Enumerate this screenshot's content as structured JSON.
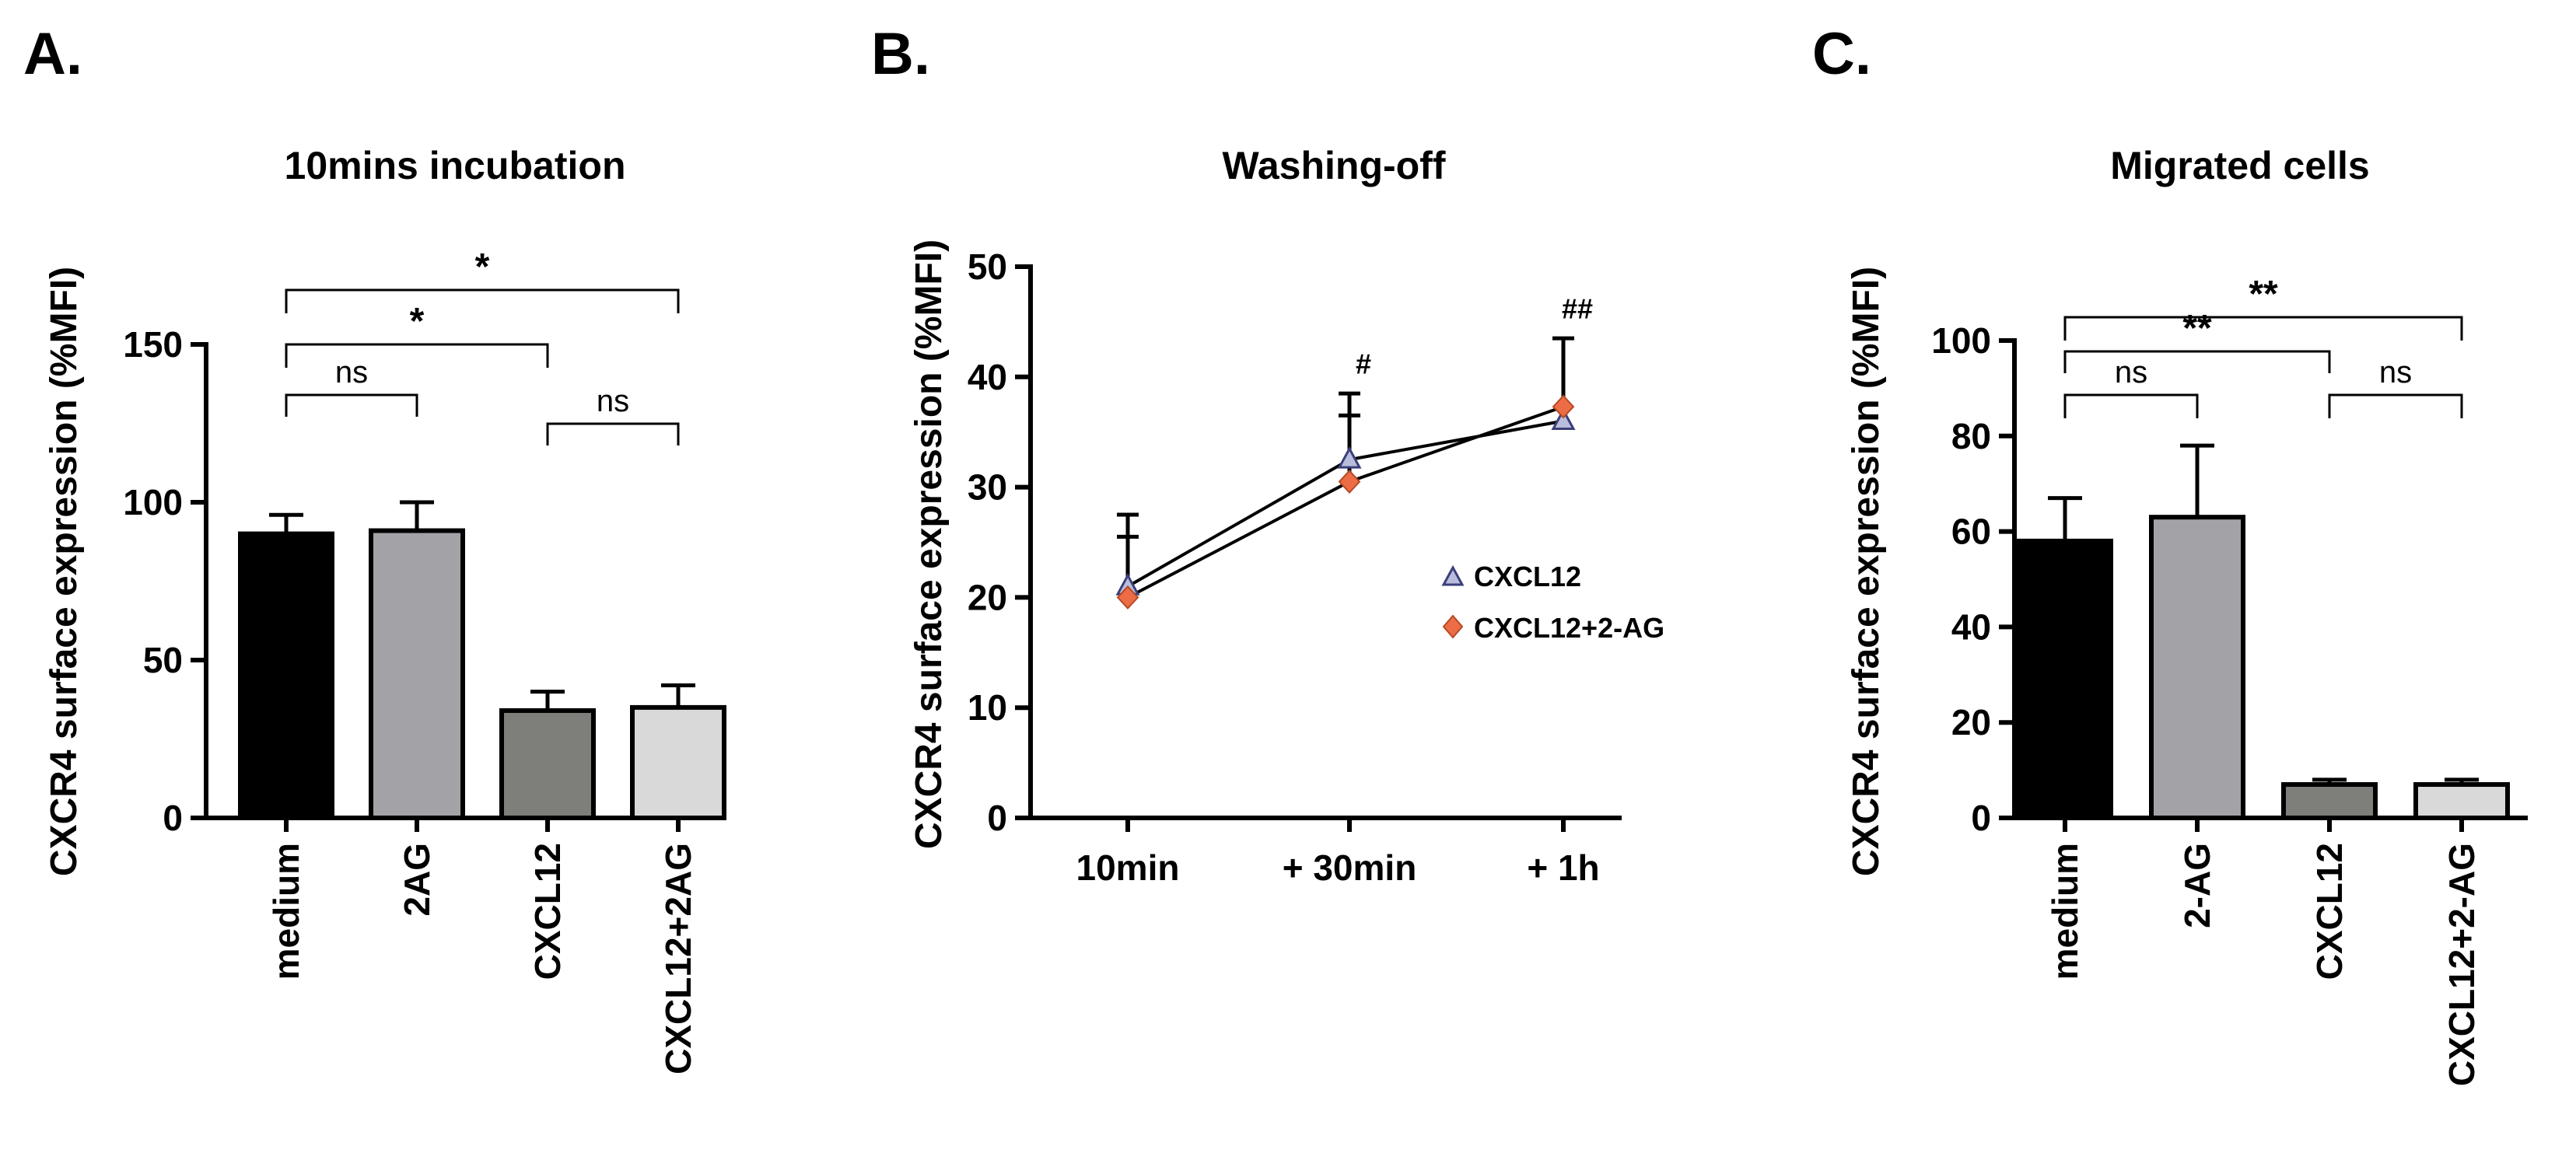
{
  "panels": {
    "A": {
      "letter": "A.",
      "chart_data": {
        "type": "bar",
        "title": "10mins incubation",
        "ylabel": "CXCR4 surface expression (%MFI)",
        "xlabel": "",
        "ylim": [
          0,
          150
        ],
        "yticks": [
          0,
          50,
          100,
          150
        ],
        "categories": [
          "medium",
          "2AG",
          "CXCL12",
          "CXCL12+2AG"
        ],
        "values": [
          90,
          91,
          34,
          35
        ],
        "errors": [
          6,
          9,
          6,
          7
        ],
        "colors": [
          "#000000",
          "#a3a3a7",
          "#7e7e7a",
          "#d9d9d9"
        ],
        "comparisons": [
          {
            "from": 0,
            "to": 1,
            "label": "ns"
          },
          {
            "from": 2,
            "to": 3,
            "label": "ns"
          },
          {
            "from": 0,
            "to": 2,
            "label": "*"
          },
          {
            "from": 0,
            "to": 3,
            "label": "*"
          }
        ]
      }
    },
    "B": {
      "letter": "B.",
      "chart_data": {
        "type": "line",
        "title": "Washing-off",
        "ylabel": "CXCR4 surface expression (%MFI)",
        "xlabel": "",
        "ylim": [
          0,
          50
        ],
        "yticks": [
          0,
          10,
          20,
          30,
          40,
          50
        ],
        "categories": [
          "10min",
          "+ 30min",
          "+ 1h"
        ],
        "series": [
          {
            "name": "CXCL12",
            "values": [
              21,
              32.5,
              36
            ],
            "errors": [
              6.5,
              6,
              0
            ],
            "marker": "triangle",
            "color": "#b9bddb"
          },
          {
            "name": "CXCL12+2-AG",
            "values": [
              20,
              30.5,
              37.3
            ],
            "errors": [
              5.5,
              6,
              6.2
            ],
            "marker": "diamond",
            "color": "#ec6d45"
          }
        ],
        "annotations": [
          {
            "category": 1,
            "label": "#",
            "y": 40.3
          },
          {
            "category": 2,
            "label": "##",
            "y": 45.3
          }
        ],
        "legend_position": "right"
      }
    },
    "C": {
      "letter": "C.",
      "chart_data": {
        "type": "bar",
        "title": "Migrated cells",
        "ylabel": "CXCR4 surface expression (%MFI)",
        "xlabel": "",
        "ylim": [
          0,
          100
        ],
        "yticks": [
          0,
          20,
          40,
          60,
          80,
          100
        ],
        "categories": [
          "medium",
          "2-AG",
          "CXCL12",
          "CXCL12+2-AG"
        ],
        "values": [
          58,
          63,
          7,
          7
        ],
        "errors": [
          9,
          15,
          1,
          1
        ],
        "colors": [
          "#000000",
          "#a3a3a7",
          "#7e7e7a",
          "#d9d9d9"
        ],
        "comparisons": [
          {
            "from": 0,
            "to": 1,
            "label": "ns"
          },
          {
            "from": 2,
            "to": 3,
            "label": "ns"
          },
          {
            "from": 0,
            "to": 2,
            "label": "**"
          },
          {
            "from": 0,
            "to": 3,
            "label": "**"
          }
        ]
      }
    }
  }
}
